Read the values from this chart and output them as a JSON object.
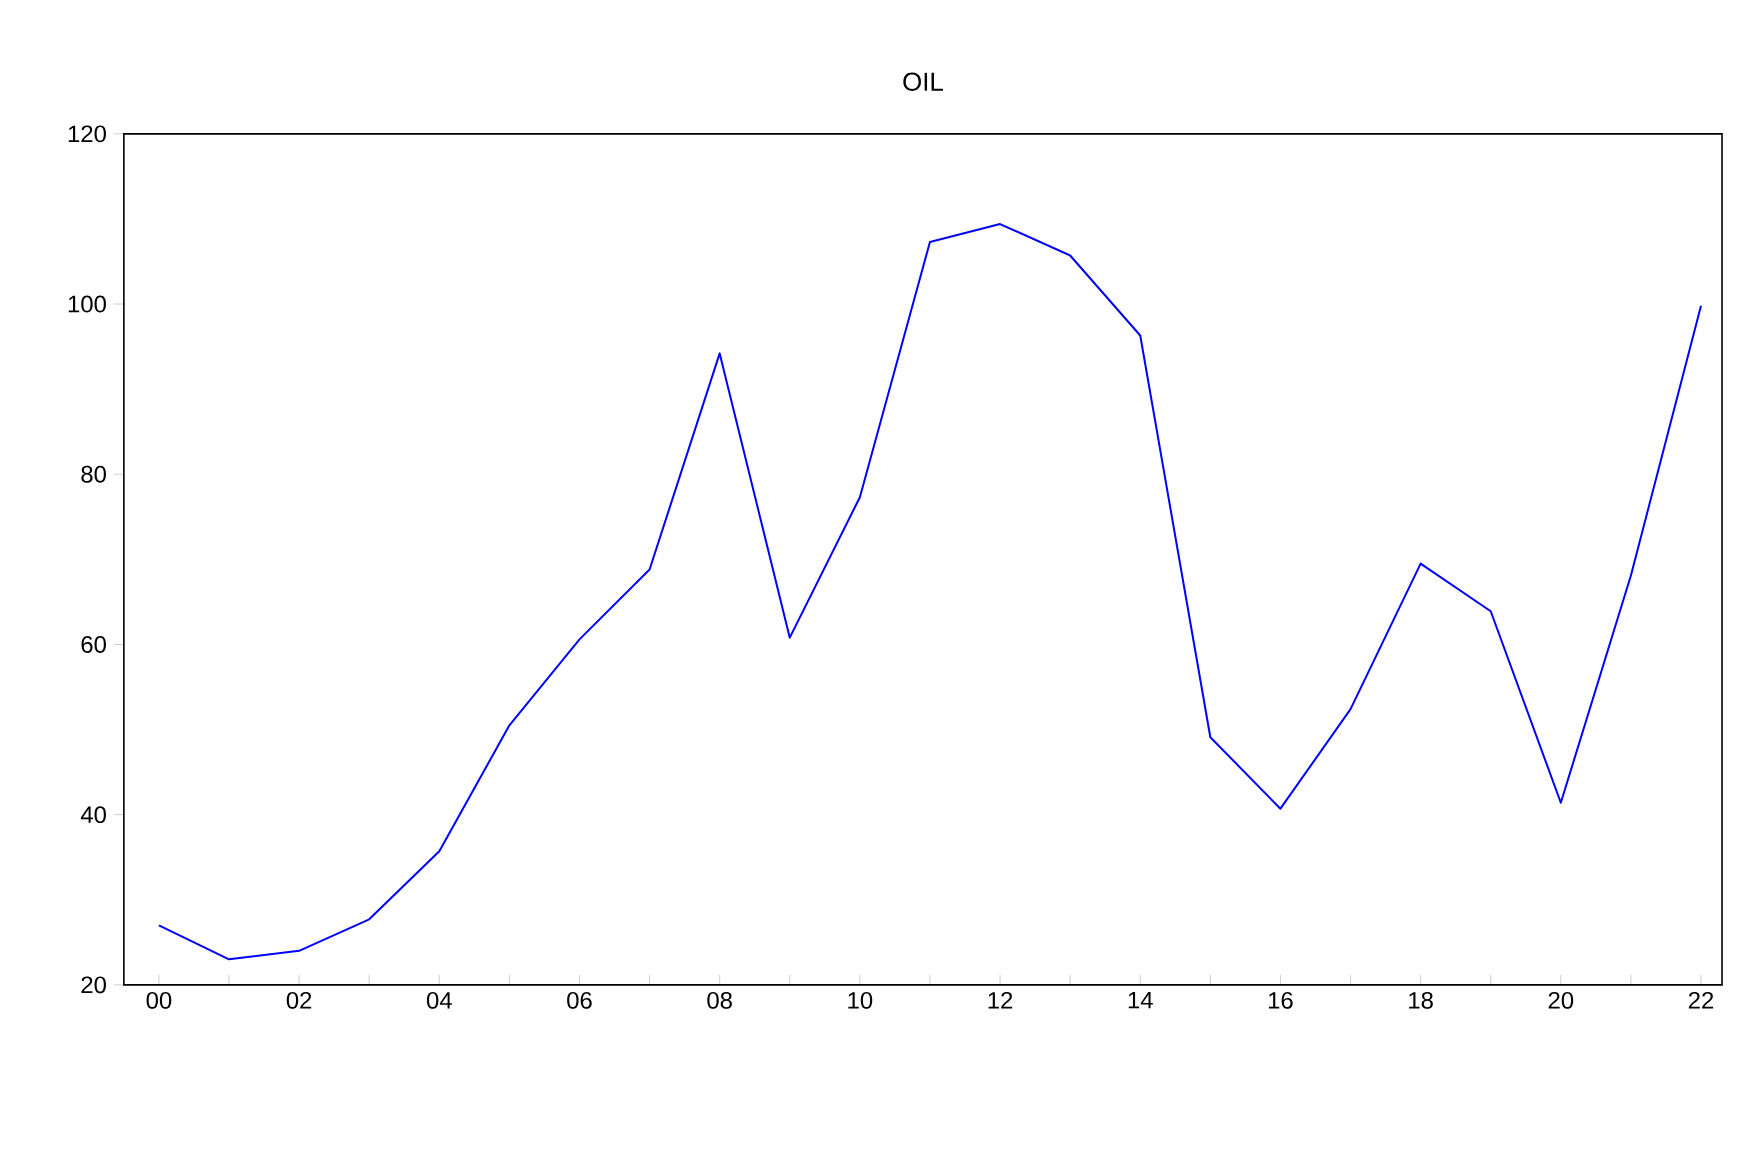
{
  "chart_data": {
    "type": "line",
    "title": "OIL",
    "x": [
      2000,
      2001,
      2002,
      2003,
      2004,
      2005,
      2006,
      2007,
      2008,
      2009,
      2010,
      2011,
      2012,
      2013,
      2014,
      2015,
      2016,
      2017,
      2018,
      2019,
      2020,
      2021,
      2022
    ],
    "series": [
      {
        "color": "#0000ff",
        "values": [
          27.0,
          23.0,
          24.0,
          27.7,
          35.7,
          50.5,
          60.6,
          68.8,
          94.2,
          60.8,
          77.3,
          107.3,
          109.4,
          105.7,
          96.3,
          49.1,
          40.7,
          52.4,
          69.5,
          63.9,
          41.4,
          68.1,
          99.8
        ]
      }
    ],
    "xlim": [
      1999.5,
      2022.3
    ],
    "ylim": [
      20,
      120
    ],
    "xticks": [
      {
        "value": 2000,
        "label": "00"
      },
      {
        "value": 2001,
        "label": null
      },
      {
        "value": 2002,
        "label": "02"
      },
      {
        "value": 2003,
        "label": null
      },
      {
        "value": 2004,
        "label": "04"
      },
      {
        "value": 2005,
        "label": null
      },
      {
        "value": 2006,
        "label": "06"
      },
      {
        "value": 2007,
        "label": null
      },
      {
        "value": 2008,
        "label": "08"
      },
      {
        "value": 2009,
        "label": null
      },
      {
        "value": 2010,
        "label": "10"
      },
      {
        "value": 2011,
        "label": null
      },
      {
        "value": 2012,
        "label": "12"
      },
      {
        "value": 2013,
        "label": null
      },
      {
        "value": 2014,
        "label": "14"
      },
      {
        "value": 2015,
        "label": null
      },
      {
        "value": 2016,
        "label": "16"
      },
      {
        "value": 2017,
        "label": null
      },
      {
        "value": 2018,
        "label": "18"
      },
      {
        "value": 2019,
        "label": null
      },
      {
        "value": 2020,
        "label": "20"
      },
      {
        "value": 2021,
        "label": null
      },
      {
        "value": 2022,
        "label": "22"
      }
    ],
    "yticks": [
      20,
      40,
      60,
      80,
      100,
      120
    ],
    "grid": false,
    "marker": "none",
    "line_style": "solid"
  }
}
